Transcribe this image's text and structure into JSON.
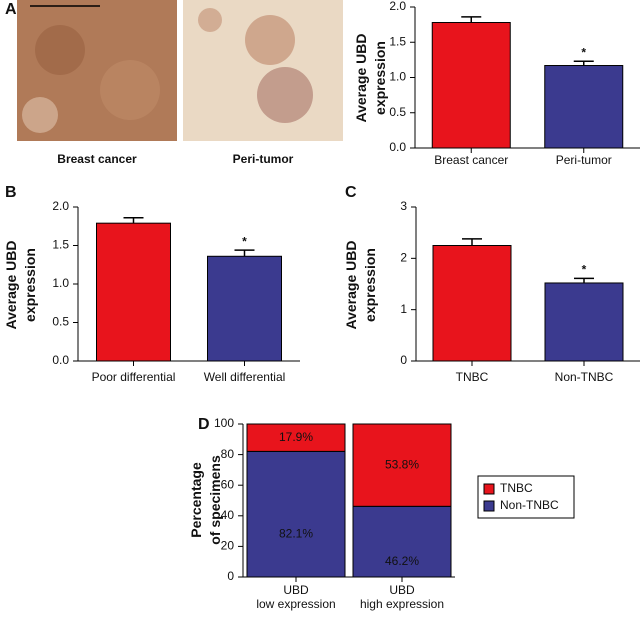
{
  "images": {
    "panel": "A",
    "captions": [
      "Breast cancer",
      "Peri-tumor"
    ]
  },
  "chart_data": [
    {
      "type": "bar",
      "panel": null,
      "ylabel": [
        "Average UBD",
        "expression"
      ],
      "categories": [
        "Breast cancer",
        "Peri-tumor"
      ],
      "values": [
        1.78,
        1.17
      ],
      "errors": [
        0.08,
        0.06
      ],
      "colors": [
        "#e8141c",
        "#3b3a8f"
      ],
      "significance": [
        null,
        "*"
      ],
      "ylim": [
        0,
        2.0
      ],
      "yticks": [
        {
          "value": 0,
          "label": "0.0"
        },
        {
          "value": 0.5,
          "label": "0.5"
        },
        {
          "value": 1,
          "label": "1.0"
        },
        {
          "value": 1.5,
          "label": "1.5"
        },
        {
          "value": 2,
          "label": "2.0"
        }
      ]
    },
    {
      "type": "bar",
      "panel": "B",
      "ylabel": [
        "Average UBD",
        "expression"
      ],
      "categories": [
        "Poor differential",
        "Well differential"
      ],
      "values": [
        1.79,
        1.36
      ],
      "errors": [
        0.07,
        0.08
      ],
      "colors": [
        "#e8141c",
        "#3b3a8f"
      ],
      "significance": [
        null,
        "*"
      ],
      "ylim": [
        0,
        2.0
      ],
      "yticks": [
        {
          "value": 0,
          "label": "0.0"
        },
        {
          "value": 0.5,
          "label": "0.5"
        },
        {
          "value": 1,
          "label": "1.0"
        },
        {
          "value": 1.5,
          "label": "1.5"
        },
        {
          "value": 2,
          "label": "2.0"
        }
      ]
    },
    {
      "type": "bar",
      "panel": "C",
      "ylabel": [
        "Average UBD",
        "expression"
      ],
      "categories": [
        "TNBC",
        "Non-TNBC"
      ],
      "values": [
        2.25,
        1.52
      ],
      "errors": [
        0.13,
        0.09
      ],
      "colors": [
        "#e8141c",
        "#3b3a8f"
      ],
      "significance": [
        null,
        "*"
      ],
      "ylim": [
        0,
        3
      ],
      "yticks": [
        0,
        1,
        2,
        3
      ]
    },
    {
      "type": "stacked_bar",
      "panel": "D",
      "ylabel": [
        "Percentage",
        "of specimens"
      ],
      "categories": [
        [
          "UBD",
          "low expression"
        ],
        [
          "UBD",
          "high expression"
        ]
      ],
      "series": [
        {
          "name": "TNBC",
          "color": "#e8141c",
          "values": [
            17.9,
            53.8
          ],
          "value_labels": [
            "17.9%",
            "53.8%"
          ]
        },
        {
          "name": "Non-TNBC",
          "color": "#3b3a8f",
          "values": [
            82.1,
            46.2
          ],
          "value_labels": [
            "82.1%",
            "46.2%"
          ]
        }
      ],
      "ylim": [
        0,
        100
      ],
      "yticks": [
        0,
        20,
        40,
        60,
        80,
        100
      ],
      "legend": "right"
    }
  ]
}
